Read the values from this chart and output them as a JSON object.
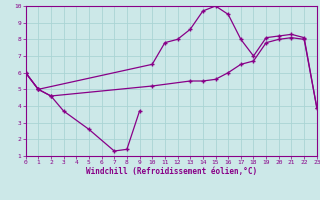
{
  "xlabel": "Windchill (Refroidissement éolien,°C)",
  "bg_color": "#cce8e8",
  "grid_color": "#aad4d4",
  "line_color": "#880088",
  "xlim": [
    0,
    23
  ],
  "ylim": [
    1,
    10
  ],
  "xticks": [
    0,
    1,
    2,
    3,
    4,
    5,
    6,
    7,
    8,
    9,
    10,
    11,
    12,
    13,
    14,
    15,
    16,
    17,
    18,
    19,
    20,
    21,
    22,
    23
  ],
  "yticks": [
    1,
    2,
    3,
    4,
    5,
    6,
    7,
    8,
    9,
    10
  ],
  "line1_x": [
    0,
    1,
    2,
    3,
    5,
    7,
    8,
    9
  ],
  "line1_y": [
    6.0,
    5.0,
    4.6,
    3.7,
    2.6,
    1.3,
    1.4,
    3.7
  ],
  "line2_x": [
    0,
    1,
    10,
    11,
    12,
    13,
    14,
    15,
    16,
    17,
    18,
    19,
    20,
    21,
    22,
    23
  ],
  "line2_y": [
    6.0,
    5.0,
    6.5,
    7.8,
    8.0,
    8.6,
    9.7,
    10.0,
    9.5,
    8.0,
    7.0,
    8.1,
    8.2,
    8.3,
    8.1,
    3.9
  ],
  "line3_x": [
    0,
    1,
    2,
    10,
    13,
    14,
    15,
    16,
    17,
    18,
    19,
    20,
    21,
    22,
    23
  ],
  "line3_y": [
    6.0,
    5.0,
    4.6,
    5.2,
    5.5,
    5.5,
    5.6,
    6.0,
    6.5,
    6.7,
    7.8,
    8.0,
    8.1,
    8.0,
    3.9
  ],
  "marker": "+",
  "markersize": 3,
  "linewidth": 0.9
}
